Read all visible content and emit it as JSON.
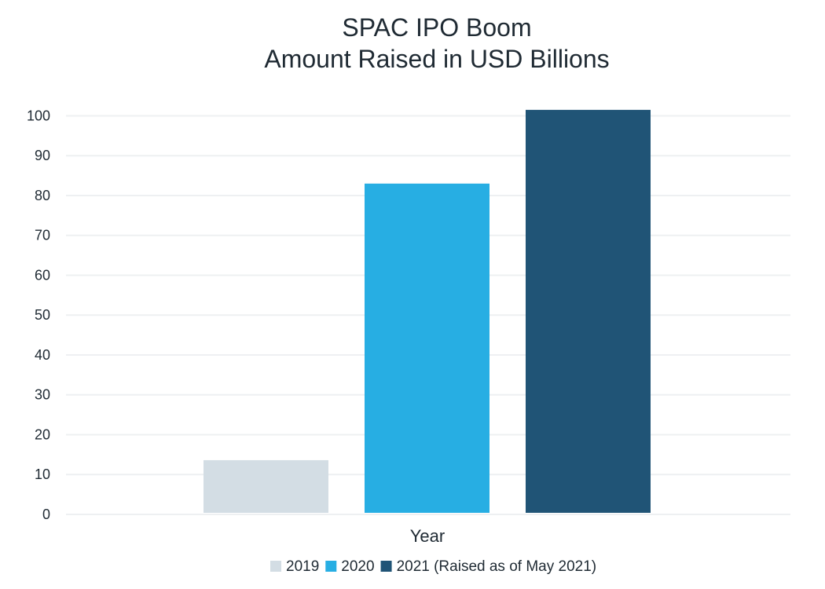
{
  "chart_data": {
    "type": "bar",
    "title": "SPAC IPO Boom",
    "subtitle": "Amount Raised in USD Billions",
    "xlabel": "Year",
    "ylabel": "",
    "ylim": [
      0,
      100
    ],
    "yticks": [
      0,
      10,
      20,
      30,
      40,
      50,
      60,
      70,
      80,
      90,
      100
    ],
    "grid": true,
    "legend_position": "bottom",
    "series": [
      {
        "name": "2019",
        "value": 13.6,
        "color": "#d3dde4"
      },
      {
        "name": "2020",
        "value": 83.0,
        "color": "#27aee3"
      },
      {
        "name": "2021 (Raised as of May 2021)",
        "value": 101.5,
        "color": "#205476"
      }
    ]
  }
}
